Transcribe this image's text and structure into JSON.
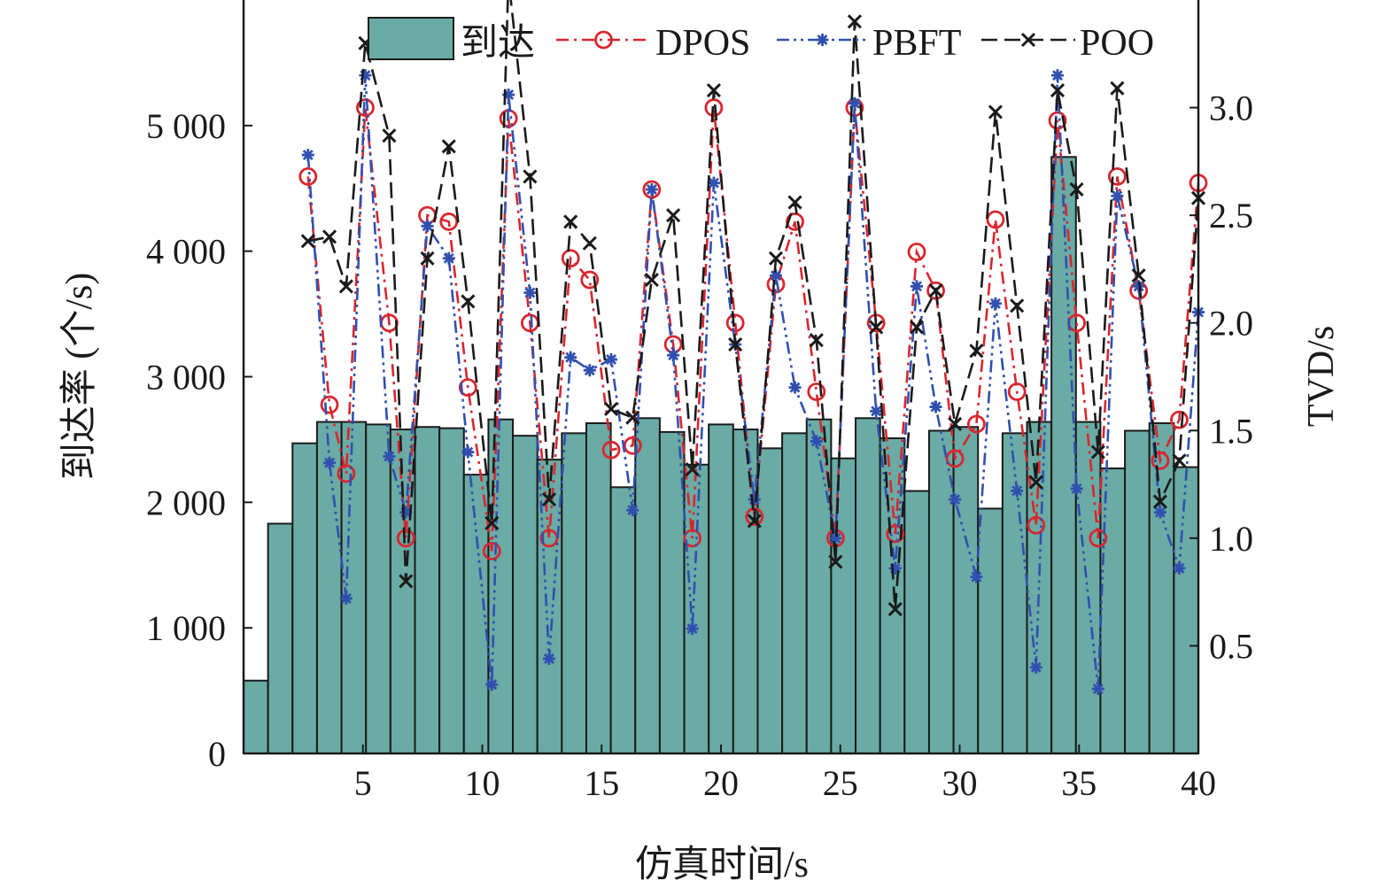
{
  "chart_data": {
    "type": "bar+line",
    "x_label": "仿真时间/s",
    "y_left_label": "到达率 (个/s)",
    "y_right_label": "TVD/s",
    "x_ticks": [
      "5",
      "10",
      "15",
      "20",
      "25",
      "30",
      "35",
      "40"
    ],
    "y_left_ticks": [
      "0",
      "1 000",
      "2 000",
      "3 000",
      "4 000",
      "5 000"
    ],
    "y_right_ticks": [
      "0.5",
      "1.0",
      "1.5",
      "2.0",
      "2.5",
      "3.0"
    ],
    "xlim": [
      0,
      40
    ],
    "y_left_lim": [
      0,
      6000
    ],
    "y_right_lim": [
      0,
      3.5
    ],
    "legend_position": "top",
    "bars": {
      "name": "到达",
      "color": "#6aaba5",
      "values": [
        580,
        1830,
        2470,
        2640,
        2640,
        2620,
        2580,
        2600,
        2590,
        2220,
        2660,
        2530,
        2340,
        2550,
        2630,
        2120,
        2670,
        2560,
        2300,
        2620,
        2580,
        2430,
        2550,
        2660,
        2350,
        2670,
        2510,
        2090,
        2570,
        2600,
        1950,
        2550,
        2640,
        4750,
        2640,
        2270,
        2570,
        2630,
        2280
      ]
    },
    "series": [
      {
        "name": "DPOS",
        "color": "#d9262e",
        "line_style": "dashdot",
        "marker": "circle",
        "x": [
          2.7,
          3.6,
          4.3,
          5.1,
          6.1,
          6.8,
          7.7,
          8.6,
          9.4,
          10.4,
          11.1,
          12.0,
          12.8,
          13.7,
          14.5,
          15.4,
          16.3,
          17.1,
          18.0,
          18.8,
          19.7,
          20.6,
          21.4,
          22.3,
          23.1,
          24.0,
          24.8,
          25.6,
          26.5,
          27.3,
          28.2,
          29.0,
          29.8,
          30.7,
          31.5,
          32.4,
          33.2,
          34.1,
          34.9,
          35.8,
          36.6,
          37.5,
          38.4,
          39.2,
          40.0
        ],
        "y": [
          2.68,
          1.62,
          1.3,
          3.0,
          2.0,
          1.0,
          2.5,
          2.47,
          1.7,
          0.94,
          2.95,
          2.0,
          1.0,
          2.3,
          2.2,
          1.41,
          1.43,
          2.62,
          1.9,
          1.0,
          3.0,
          2.0,
          1.1,
          2.18,
          2.47,
          1.68,
          1.0,
          3.0,
          2.0,
          1.02,
          2.33,
          2.15,
          1.37,
          1.53,
          2.48,
          1.68,
          1.06,
          2.94,
          2.0,
          1.0,
          2.68,
          2.15,
          1.36,
          1.55,
          2.65
        ]
      },
      {
        "name": "PBFT",
        "color": "#3050b0",
        "line_style": "dashdotdot",
        "marker": "asterisk",
        "x": [
          2.7,
          3.6,
          4.3,
          5.1,
          6.1,
          6.8,
          7.7,
          8.6,
          9.4,
          10.4,
          11.1,
          12.0,
          12.8,
          13.7,
          14.5,
          15.4,
          16.3,
          17.1,
          18.0,
          18.8,
          19.7,
          20.6,
          21.4,
          22.3,
          23.1,
          24.0,
          24.8,
          25.6,
          26.5,
          27.3,
          28.2,
          29.0,
          29.8,
          30.7,
          31.5,
          32.4,
          33.2,
          34.1,
          34.9,
          35.8,
          36.6,
          37.5,
          38.4,
          39.2,
          40.0
        ],
        "y": [
          2.78,
          1.35,
          0.72,
          3.15,
          1.38,
          1.12,
          2.45,
          2.3,
          1.4,
          0.32,
          3.06,
          2.14,
          0.44,
          1.84,
          1.78,
          1.83,
          1.13,
          2.62,
          1.85,
          0.58,
          2.65,
          1.9,
          1.18,
          2.22,
          1.7,
          1.45,
          1.0,
          3.02,
          1.59,
          0.86,
          2.17,
          1.61,
          1.18,
          0.82,
          2.09,
          1.22,
          0.4,
          3.15,
          1.23,
          0.3,
          2.59,
          2.17,
          1.12,
          0.86,
          2.05
        ]
      },
      {
        "name": "POO",
        "color": "#1a1a1a",
        "line_style": "dashed",
        "marker": "x",
        "x": [
          2.7,
          3.6,
          4.3,
          5.1,
          6.1,
          6.8,
          7.7,
          8.6,
          9.4,
          10.4,
          11.1,
          12.0,
          12.8,
          13.7,
          14.5,
          15.4,
          16.3,
          17.1,
          18.0,
          18.8,
          19.7,
          20.6,
          21.4,
          22.3,
          23.1,
          24.0,
          24.8,
          25.6,
          26.5,
          27.3,
          28.2,
          29.0,
          29.8,
          30.7,
          31.5,
          32.4,
          33.2,
          34.1,
          34.9,
          35.8,
          36.6,
          37.5,
          38.4,
          39.2,
          40.0
        ],
        "y": [
          2.38,
          2.4,
          2.17,
          3.3,
          2.87,
          0.8,
          2.3,
          2.82,
          2.1,
          1.07,
          3.6,
          2.68,
          1.18,
          2.47,
          2.37,
          1.6,
          1.56,
          2.2,
          2.5,
          1.32,
          3.08,
          1.9,
          1.08,
          2.3,
          2.56,
          1.92,
          0.89,
          3.4,
          1.98,
          0.67,
          1.98,
          2.15,
          1.53,
          1.87,
          2.98,
          2.08,
          1.26,
          3.08,
          2.62,
          1.4,
          3.09,
          2.22,
          1.17,
          1.36,
          2.58
        ]
      }
    ]
  }
}
